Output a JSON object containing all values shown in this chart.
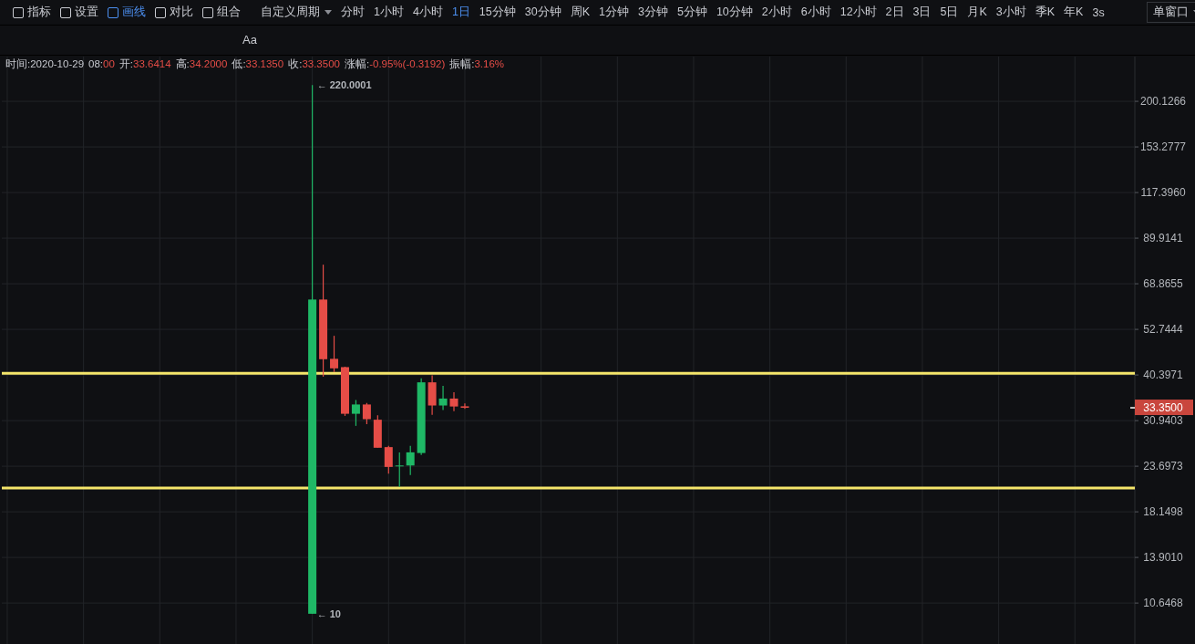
{
  "chart_data": {
    "type": "candlestick",
    "categories": [
      null,
      null,
      null,
      null,
      null,
      null,
      null,
      null,
      null,
      null,
      null,
      null,
      null,
      null,
      null,
      null,
      null,
      null,
      null,
      null,
      null,
      null,
      null,
      null,
      null,
      null,
      null,
      null,
      null,
      null,
      null,
      null,
      null,
      null,
      null,
      null,
      null,
      null,
      null,
      null,
      null,
      null,
      null,
      null,
      null,
      null,
      null,
      null,
      null,
      null,
      null,
      null,
      null,
      null,
      null,
      null,
      null,
      null,
      null,
      null,
      null,
      null,
      null,
      null,
      null,
      null,
      null,
      null,
      null,
      null,
      null,
      null,
      null,
      null,
      null,
      null,
      null,
      null,
      null,
      null,
      null,
      null,
      null,
      null,
      null,
      null,
      null,
      null,
      null,
      null,
      null,
      null,
      null,
      null,
      null,
      null,
      null,
      null,
      null,
      null,
      null,
      null,
      null,
      null
    ],
    "ohlc": [
      null,
      null,
      null,
      null,
      null,
      null,
      null,
      null,
      null,
      null,
      null,
      null,
      null,
      null,
      null,
      null,
      null,
      null,
      null,
      null,
      null,
      null,
      null,
      null,
      null,
      null,
      null,
      null,
      [
        10,
        220.0001,
        10,
        62.8
      ],
      [
        62.8,
        77.0,
        40.0,
        44.3
      ],
      [
        44.4,
        50.8,
        41.1,
        42.0
      ],
      [
        42.3,
        42.4,
        31.8,
        32.2
      ],
      [
        32.2,
        34.9,
        30.0,
        34.0
      ],
      [
        34.0,
        34.3,
        30.3,
        31.2
      ],
      [
        31.1,
        31.9,
        26.4,
        26.4
      ],
      [
        26.5,
        26.7,
        22.7,
        23.6
      ],
      [
        23.7,
        25.7,
        21.0,
        23.8
      ],
      [
        23.8,
        26.7,
        22.5,
        25.7
      ],
      [
        25.6,
        39.6,
        25.3,
        38.7
      ],
      [
        38.7,
        40.3,
        32.0,
        33.8
      ],
      [
        33.8,
        37.9,
        32.9,
        35.2
      ],
      [
        35.2,
        36.5,
        32.7,
        33.6
      ],
      [
        33.6414,
        34.2,
        33.135,
        33.35
      ],
      null,
      null,
      null,
      null,
      null,
      null,
      null,
      null,
      null,
      null,
      null,
      null,
      null,
      null,
      null,
      null,
      null,
      null,
      null,
      null,
      null,
      null,
      null,
      null,
      null,
      null,
      null,
      null,
      null,
      null,
      null,
      null,
      null,
      null,
      null,
      null,
      null,
      null,
      null,
      null,
      null,
      null,
      null,
      null,
      null,
      null,
      null,
      null,
      null,
      null,
      null,
      null,
      null,
      null,
      null,
      null,
      null,
      null,
      null,
      null,
      null
    ],
    "log": true,
    "ylim": [
      8.38,
      260
    ],
    "yticks": [
      {
        "value": 10.6468,
        "label": "10.6468"
      },
      {
        "value": 13.901,
        "label": "13.9010"
      },
      {
        "value": 18.1498,
        "label": "18.1498"
      },
      {
        "value": 23.6973,
        "label": "23.6973"
      },
      {
        "value": 30.9403,
        "label": "30.9403"
      },
      {
        "value": 40.3971,
        "label": "40.3971"
      },
      {
        "value": 52.7444,
        "label": "52.7444"
      },
      {
        "value": 68.8655,
        "label": "68.8655"
      },
      {
        "value": 89.9141,
        "label": "89.9141"
      },
      {
        "value": 117.396,
        "label": "117.3960"
      },
      {
        "value": 153.2777,
        "label": "153.2777"
      },
      {
        "value": 200.1266,
        "label": "200.1266"
      }
    ],
    "grid": true,
    "tick_labels": "y",
    "ref_lines": [
      {
        "axis": "y",
        "value": 40.8,
        "color": "#f5e66b",
        "line_style": "solid"
      },
      {
        "axis": "y",
        "value": 20.85,
        "color": "#f5e66b",
        "line_style": "solid"
      }
    ],
    "annotations": [
      "时间:2020-10-29 08:00 开:33.6414 高:34.2000 低:33.1350 收:33.3500 涨幅:-0.95%(-0.3192) 振幅:3.16%",
      "← 220.0001",
      "← 10",
      "33.3500",
      "指标",
      "设置",
      "画线",
      "对比",
      "组合",
      "自定义周期",
      "分时",
      "1小时",
      "4小时",
      "1日",
      "15分钟",
      "30分钟",
      "周K",
      "1分钟",
      "3分钟",
      "5分钟",
      "10分钟",
      "2小时",
      "6小时",
      "12小时",
      "2日",
      "3日",
      "5日",
      "月K",
      "3小时",
      "季K",
      "年K",
      "3s",
      "单窗口",
      "Aa"
    ]
  }
}
